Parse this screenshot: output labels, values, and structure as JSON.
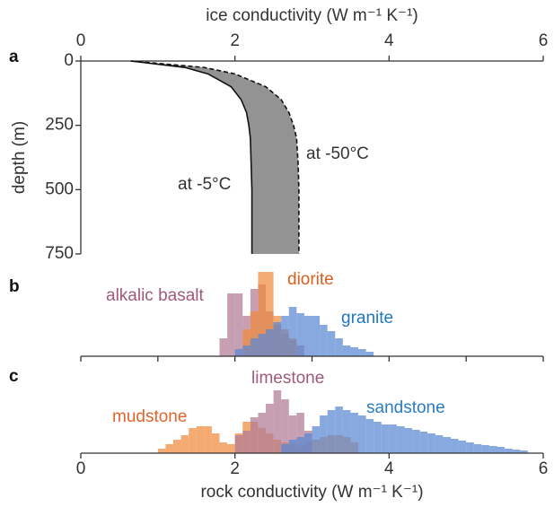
{
  "chart_data": [
    {
      "type": "line",
      "panel": "a",
      "title": "ice conductivity (W m⁻¹ K⁻¹)",
      "ylabel": "depth (m)",
      "xlim": [
        0,
        6
      ],
      "xticks": [
        0,
        2,
        4,
        6
      ],
      "ylim": [
        0,
        750
      ],
      "yticks": [
        0,
        250,
        500,
        750
      ],
      "y_inverted": true,
      "fill_color": "#939393",
      "y": [
        0,
        25,
        50,
        100,
        150,
        200,
        250,
        300,
        400,
        500,
        750
      ],
      "series": [
        {
          "name": "at -5°C",
          "color": "#111111",
          "dashed": false,
          "values": [
            0.65,
            1.35,
            1.65,
            1.95,
            2.08,
            2.15,
            2.18,
            2.2,
            2.21,
            2.22,
            2.22
          ]
        },
        {
          "name": "at -50°C",
          "color": "#111111",
          "dashed": true,
          "values": [
            0.65,
            1.6,
            2.0,
            2.4,
            2.6,
            2.7,
            2.76,
            2.8,
            2.82,
            2.83,
            2.83
          ]
        }
      ]
    },
    {
      "type": "histogram",
      "panel": "b",
      "xlim": [
        0,
        6
      ],
      "xticks": [
        0,
        1,
        2,
        3,
        4,
        5,
        6
      ],
      "series": [
        {
          "name": "alkalic basalt",
          "color": "#b07a95",
          "label_color": "#a05a7a",
          "bins": [
            1.8,
            1.9,
            2.0,
            2.1,
            2.2,
            2.3,
            2.4,
            2.5,
            2.6,
            2.7,
            2.8,
            2.9
          ],
          "values": [
            20,
            70,
            70,
            45,
            75,
            80,
            50,
            35,
            25,
            18,
            12
          ]
        },
        {
          "name": "diorite",
          "color": "#f08a3c",
          "label_color": "#d95f1f",
          "bins": [
            2.1,
            2.2,
            2.3,
            2.4,
            2.5,
            2.6,
            2.7,
            2.8
          ],
          "values": [
            30,
            50,
            94,
            94,
            45,
            30,
            20
          ]
        },
        {
          "name": "granite",
          "color": "#5a88d4",
          "label_color": "#1f77c4",
          "bins": [
            2.0,
            2.1,
            2.2,
            2.3,
            2.4,
            2.5,
            2.6,
            2.7,
            2.8,
            2.9,
            3.0,
            3.1,
            3.2,
            3.3,
            3.4,
            3.5,
            3.6,
            3.7,
            3.8
          ],
          "values": [
            8,
            12,
            20,
            25,
            30,
            38,
            45,
            55,
            48,
            45,
            45,
            35,
            28,
            20,
            12,
            10,
            8,
            5
          ]
        }
      ]
    },
    {
      "type": "histogram",
      "panel": "c",
      "xlabel": "rock conductivity (W m⁻¹ K⁻¹)",
      "xlim": [
        0,
        6
      ],
      "xticks": [
        0,
        2,
        4,
        6
      ],
      "series": [
        {
          "name": "mudstone",
          "color": "#f08a3c",
          "label_color": "#e0652b",
          "bins": [
            1.0,
            1.1,
            1.2,
            1.3,
            1.4,
            1.5,
            1.6,
            1.7,
            1.8,
            1.9,
            2.0,
            2.1,
            2.2,
            2.3,
            2.4,
            2.5,
            2.6,
            2.7,
            2.8,
            2.9,
            3.0,
            3.1,
            3.2,
            3.3,
            3.4,
            3.5,
            3.6
          ],
          "values": [
            5,
            10,
            15,
            20,
            28,
            30,
            30,
            22,
            12,
            10,
            22,
            35,
            35,
            28,
            22,
            15,
            12,
            10,
            8,
            12,
            15,
            18,
            20,
            20,
            18,
            12
          ]
        },
        {
          "name": "limestone",
          "color": "#b07a95",
          "label_color": "#a05a7a",
          "bins": [
            2.0,
            2.1,
            2.2,
            2.3,
            2.4,
            2.5,
            2.6,
            2.7,
            2.8,
            2.9,
            3.0
          ],
          "values": [
            20,
            25,
            40,
            45,
            55,
            70,
            60,
            42,
            45,
            25
          ]
        },
        {
          "name": "sandstone",
          "color": "#5a88d4",
          "label_color": "#2a7bc2",
          "bins": [
            2.6,
            2.7,
            2.8,
            2.9,
            3.0,
            3.1,
            3.2,
            3.3,
            3.4,
            3.5,
            3.6,
            3.7,
            3.8,
            3.9,
            4.0,
            4.1,
            4.2,
            4.3,
            4.4,
            4.5,
            4.6,
            4.7,
            4.8,
            4.9,
            5.0,
            5.1,
            5.2,
            5.3,
            5.4,
            5.5,
            5.6,
            5.7,
            5.8
          ],
          "values": [
            10,
            15,
            18,
            22,
            30,
            42,
            48,
            52,
            48,
            45,
            42,
            38,
            35,
            32,
            32,
            30,
            28,
            26,
            24,
            22,
            20,
            18,
            16,
            14,
            12,
            10,
            9,
            8,
            7,
            5,
            4,
            3
          ]
        }
      ]
    }
  ]
}
